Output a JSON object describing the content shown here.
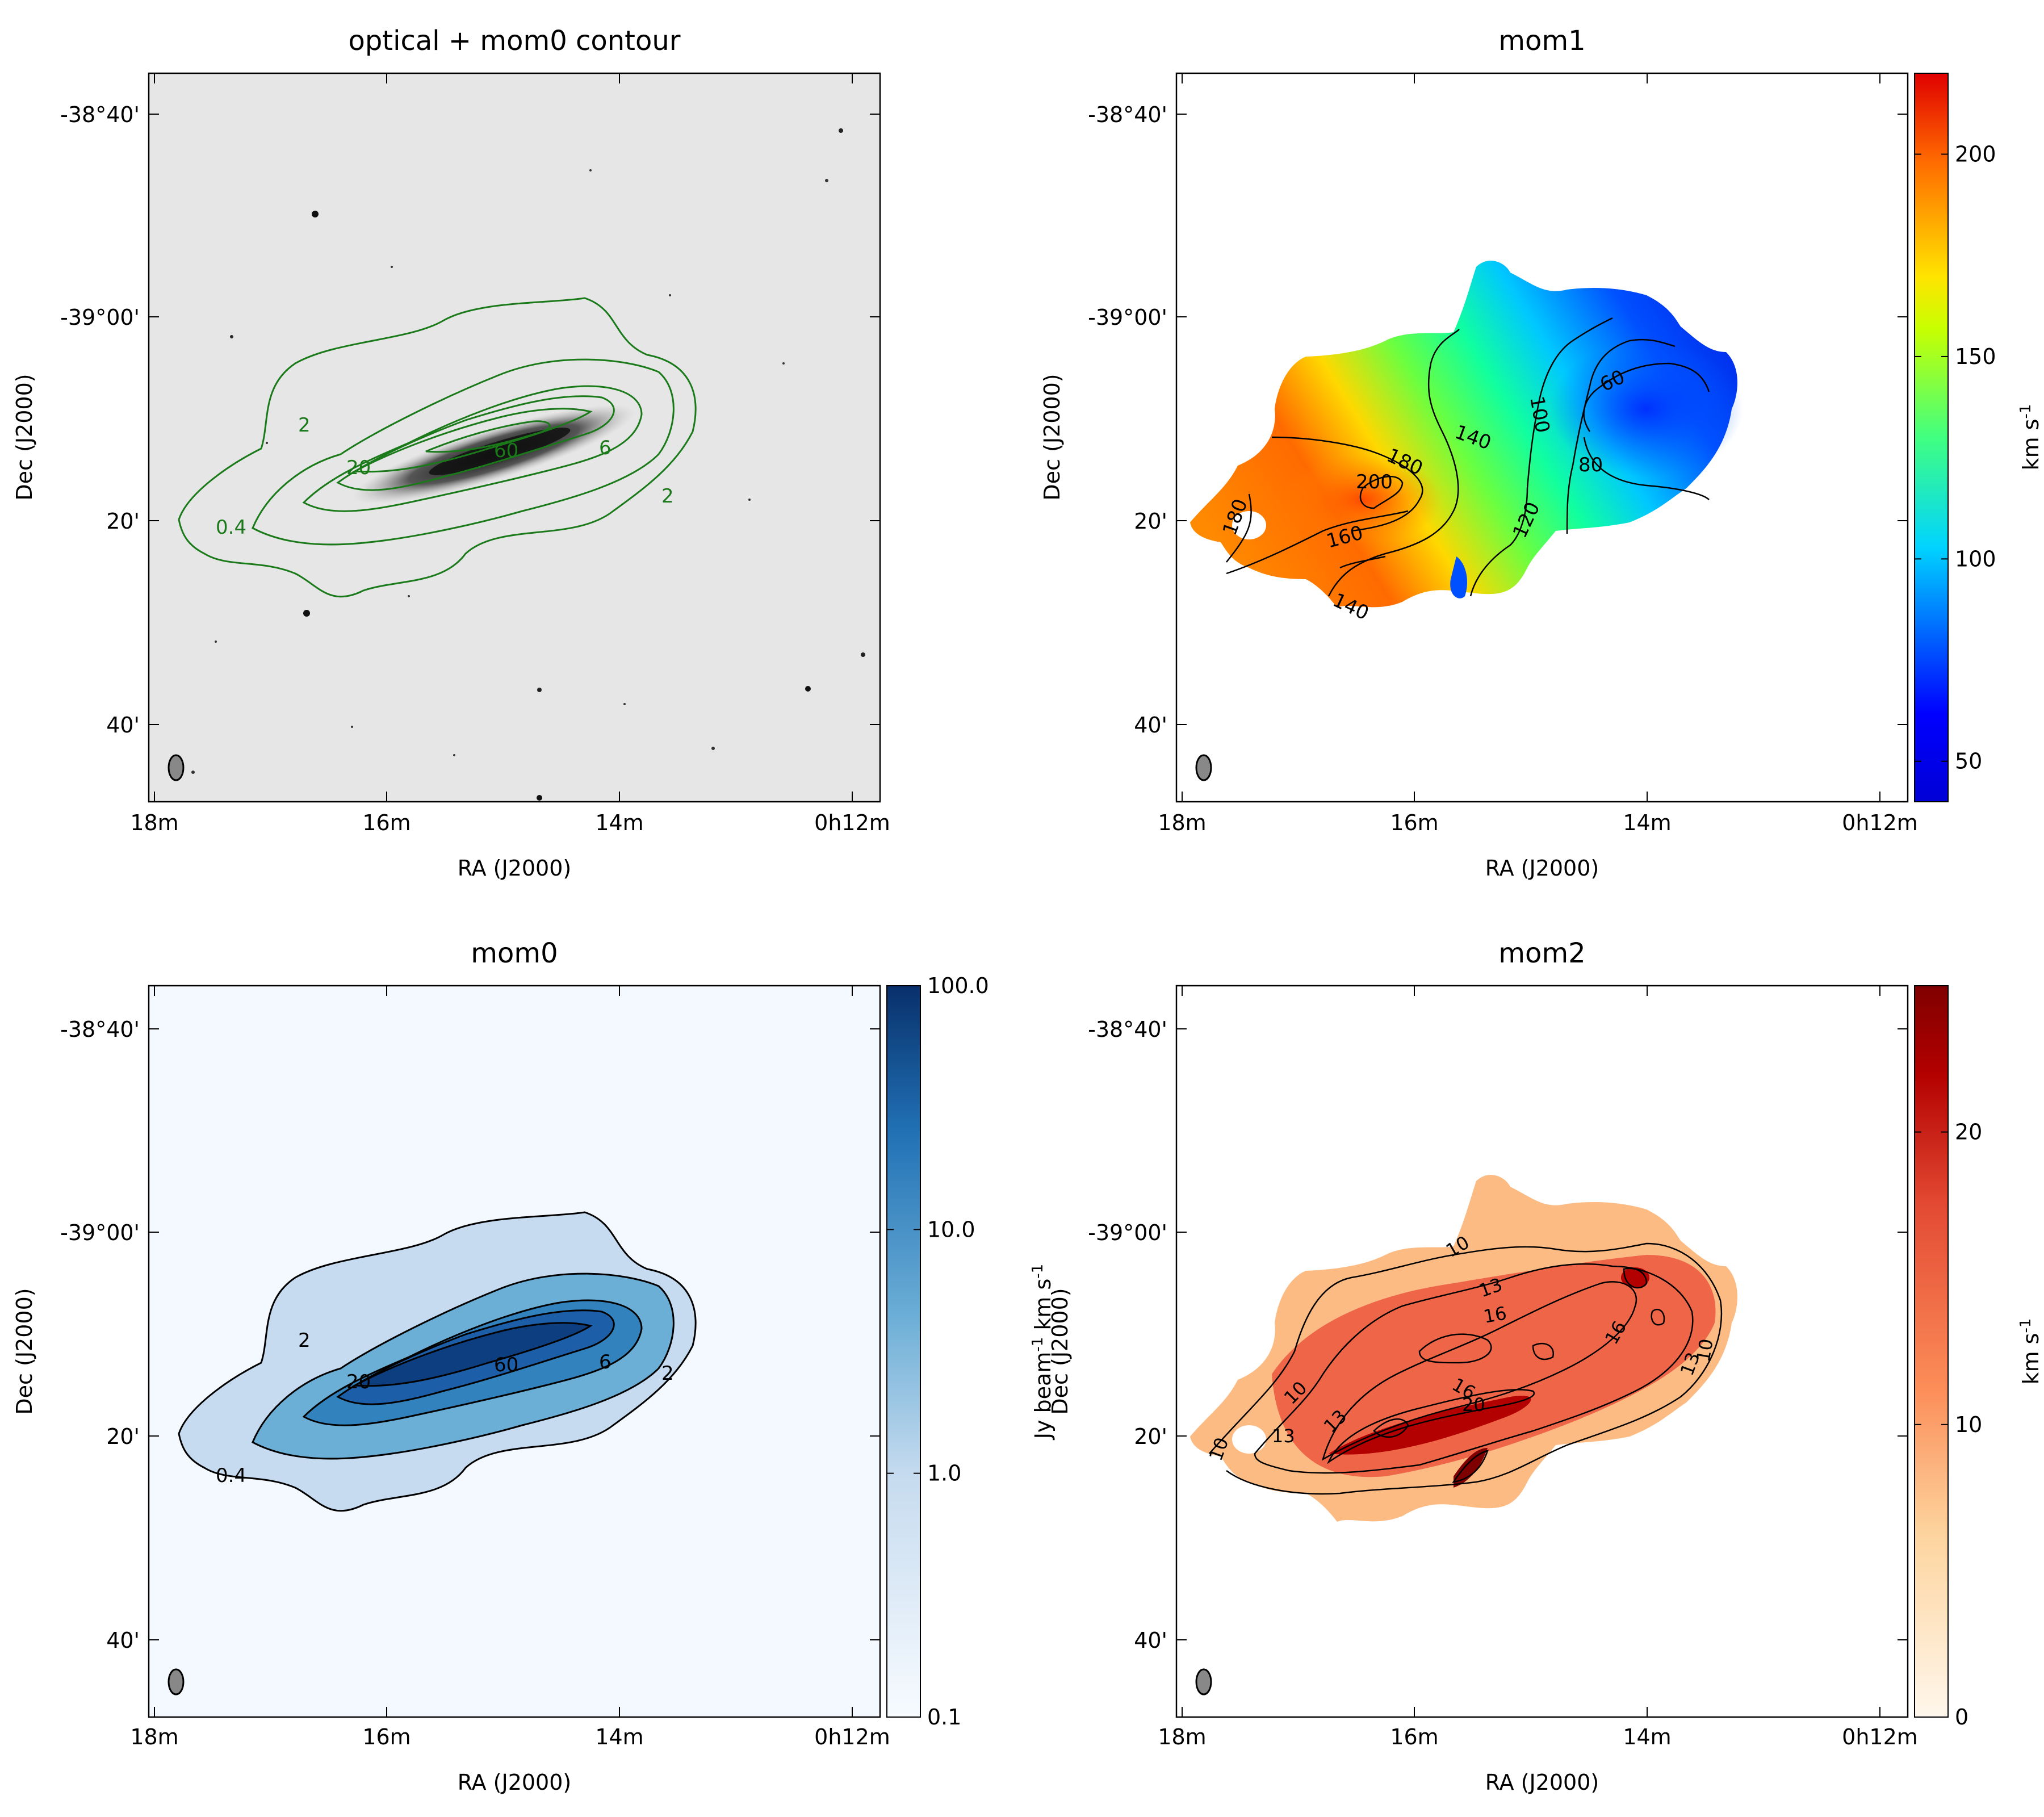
{
  "figure": {
    "bg": "#ffffff",
    "beam_color": "#888888"
  },
  "chart_data": [
    {
      "type": "heatmap",
      "title": "optical + mom0 contour",
      "xlabel": "RA (J2000)",
      "ylabel": "Dec (J2000)",
      "xticks": [
        "18m",
        "16m",
        "14m",
        "0h12m"
      ],
      "yticks": [
        "-38°40'",
        "-39°00'",
        "20'",
        "40'"
      ],
      "image": "optical",
      "contour_color": "#1a7a1a",
      "contour_labels": [
        "0.4",
        "2",
        "20",
        "60",
        "6",
        "2"
      ]
    },
    {
      "type": "heatmap",
      "title": "mom1",
      "xlabel": "RA (J2000)",
      "ylabel": "Dec (J2000)",
      "xticks": [
        "18m",
        "16m",
        "14m",
        "0h12m"
      ],
      "yticks": [
        "-38°40'",
        "-39°00'",
        "20'",
        "40'"
      ],
      "image": "mom1",
      "colorbar": {
        "label": "km s",
        "label_sup": "-1",
        "ticks": [
          "50",
          "100",
          "150",
          "200"
        ],
        "tick_values": [
          50,
          100,
          150,
          200
        ],
        "range": [
          40,
          220
        ],
        "colormap": "jet"
      },
      "contour_color": "#000000",
      "contour_labels": [
        "180",
        "200",
        "180",
        "160",
        "140",
        "140",
        "120",
        "100",
        "80",
        "60"
      ]
    },
    {
      "type": "heatmap",
      "title": "mom0",
      "xlabel": "RA (J2000)",
      "ylabel": "Dec (J2000)",
      "xticks": [
        "18m",
        "16m",
        "14m",
        "0h12m"
      ],
      "yticks": [
        "-38°40'",
        "-39°00'",
        "20'",
        "40'"
      ],
      "image": "mom0",
      "colorbar": {
        "label": "Jy beam",
        "label_sup": "-1",
        "label_tail": " km s",
        "label_tail_sup": "-1",
        "ticks": [
          "0.1",
          "1.0",
          "10.0",
          "100.0"
        ],
        "tick_values": [
          0.1,
          1.0,
          10.0,
          100.0
        ],
        "range": [
          0.1,
          100.0
        ],
        "scale": "log",
        "colormap": "Blues"
      },
      "contour_color": "#000000",
      "contour_labels": [
        "0.4",
        "2",
        "20",
        "60",
        "6",
        "2"
      ]
    },
    {
      "type": "heatmap",
      "title": "mom2",
      "xlabel": "RA (J2000)",
      "ylabel": "Dec (J2000)",
      "xticks": [
        "18m",
        "16m",
        "14m",
        "0h12m"
      ],
      "yticks": [
        "-38°40'",
        "-39°00'",
        "20'",
        "40'"
      ],
      "image": "mom2",
      "colorbar": {
        "label": "km s",
        "label_sup": "-1",
        "ticks": [
          "0",
          "10",
          "20"
        ],
        "tick_values": [
          0,
          10,
          20
        ],
        "range": [
          0,
          25
        ],
        "colormap": "OrRd"
      },
      "contour_color": "#000000",
      "contour_labels": [
        "10",
        "13",
        "13",
        "16",
        "16",
        "20",
        "13",
        "10",
        "10",
        "13",
        "16",
        "10"
      ]
    }
  ]
}
